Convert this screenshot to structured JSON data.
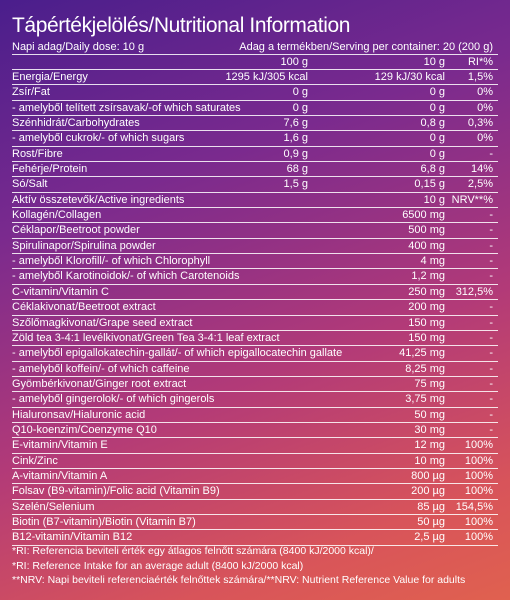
{
  "title": "Tápértékjelölés/Nutritional Information",
  "header": {
    "dose": "Napi adag/Daily dose: 10 g",
    "per_container": "Adag a termékben/Serving per container: 20 (200 g)"
  },
  "col_heads": [
    "100 g",
    "10 g",
    "RI*%"
  ],
  "nutrition": [
    {
      "name": "Energia/Energy",
      "v100": "1295 kJ/305 kcal",
      "v10": "129 kJ/30 kcal",
      "ri": "1,5%"
    },
    {
      "name": "Zsír/Fat",
      "v100": "0 g",
      "v10": "0 g",
      "ri": "0%"
    },
    {
      "name": "- amelyből telített zsírsavak/-of which saturates",
      "v100": "0 g",
      "v10": "0 g",
      "ri": "0%"
    },
    {
      "name": "Szénhidrát/Carbohydrates",
      "v100": "7,6 g",
      "v10": "0,8 g",
      "ri": "0,3%"
    },
    {
      "name": "- amelyből cukrok/- of which sugars",
      "v100": "1,6 g",
      "v10": "0 g",
      "ri": "0%"
    },
    {
      "name": "Rost/Fibre",
      "v100": "0,9 g",
      "v10": "0 g",
      "ri": "-"
    },
    {
      "name": "Fehérje/Protein",
      "v100": "68 g",
      "v10": "6,8 g",
      "ri": "14%"
    },
    {
      "name": "Só/Salt",
      "v100": "1,5 g",
      "v10": "0,15 g",
      "ri": "2,5%"
    }
  ],
  "active_header": {
    "name": "Aktív összetevők/Active ingredients",
    "v10": "10 g",
    "ri": "NRV**%"
  },
  "active": [
    {
      "name": "Kollagén/Collagen",
      "v10": "6500 mg",
      "ri": "-"
    },
    {
      "name": "Céklapor/Beetroot powder",
      "v10": "500 mg",
      "ri": "-"
    },
    {
      "name": "Spirulinapor/Spirulina powder",
      "v10": "400 mg",
      "ri": "-"
    },
    {
      "name": "- amelyből Klorofill/- of which Chlorophyll",
      "v10": "4 mg",
      "ri": "-"
    },
    {
      "name": "- amelyből Karotinoidok/- of which Carotenoids",
      "v10": "1,2 mg",
      "ri": "-"
    },
    {
      "name": "C-vitamin/Vitamin C",
      "v10": "250 mg",
      "ri": "312,5%"
    },
    {
      "name": "Céklakivonat/Beetroot extract",
      "v10": "200 mg",
      "ri": "-"
    },
    {
      "name": "Szőlőmagkivonat/Grape seed extract",
      "v10": "150 mg",
      "ri": "-"
    },
    {
      "name": "Zöld tea 3-4:1 levélkivonat/Green Tea 3-4:1 leaf extract",
      "v10": "150 mg",
      "ri": "-"
    },
    {
      "name": "- amelyből epigallokatechin-gallát/- of which epigallocatechin gallate",
      "v10": "41,25 mg",
      "ri": "-"
    },
    {
      "name": "- amelyből koffein/- of which caffeine",
      "v10": "8,25 mg",
      "ri": "-"
    },
    {
      "name": "Gyömbérkivonat/Ginger root extract",
      "v10": "75 mg",
      "ri": "-"
    },
    {
      "name": "- amelyből gingerolok/- of which gingerols",
      "v10": "3,75 mg",
      "ri": "-"
    },
    {
      "name": "Hialuronsav/Hialuronic acid",
      "v10": "50 mg",
      "ri": "-"
    },
    {
      "name": "Q10-koenzim/Coenzyme Q10",
      "v10": "30 mg",
      "ri": "-"
    },
    {
      "name": "E-vitamin/Vitamin E",
      "v10": "12 mg",
      "ri": "100%"
    },
    {
      "name": "Cink/Zinc",
      "v10": "10 mg",
      "ri": "100%"
    },
    {
      "name": "A-vitamin/Vitamin A",
      "v10": "800 µg",
      "ri": "100%"
    },
    {
      "name": "Folsav (B9-vitamin)/Folic acid (Vitamin B9)",
      "v10": "200 µg",
      "ri": "100%"
    },
    {
      "name": "Szelén/Selenium",
      "v10": "85 µg",
      "ri": "154,5%"
    },
    {
      "name": "Biotin (B7-vitamin)/Biotin (Vitamin B7)",
      "v10": "50 µg",
      "ri": "100%"
    },
    {
      "name": "B12-vitamin/Vitamin B12",
      "v10": "2,5 µg",
      "ri": "100%"
    }
  ],
  "notes": [
    "*RI: Referencia beviteli érték egy átlagos felnőtt számára (8400 kJ/2000 kcal)/",
    "*RI: Reference Intake for an average adult (8400 kJ/2000 kcal)",
    "**NRV: Napi beviteli referenciaérték felnőttek számára/**NRV: Nutrient Reference Value for adults"
  ]
}
